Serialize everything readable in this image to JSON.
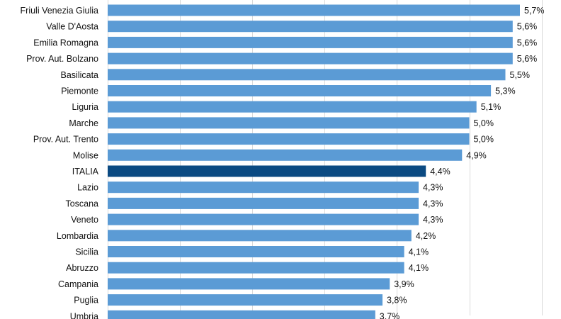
{
  "chart_data": {
    "type": "bar",
    "orientation": "horizontal",
    "title": "",
    "xlabel": "",
    "ylabel": "",
    "xlim": [
      0,
      6
    ],
    "grid": true,
    "legend": "none",
    "colors": {
      "default_bar": "#5B9BD5",
      "highlight_bar": "#0B4A82",
      "gridline": "#D9D9D9"
    },
    "highlight": "ITALIA",
    "categories": [
      "Friuli Venezia Giulia",
      "Valle D'Aosta",
      "Emilia Romagna",
      "Prov. Aut. Bolzano",
      "Basilicata",
      "Piemonte",
      "Liguria",
      "Marche",
      "Prov. Aut. Trento",
      "Molise",
      "ITALIA",
      "Lazio",
      "Toscana",
      "Veneto",
      "Lombardia",
      "Sicilia",
      "Abruzzo",
      "Campania",
      "Puglia",
      "Umbria"
    ],
    "values": [
      5.7,
      5.6,
      5.6,
      5.6,
      5.5,
      5.3,
      5.1,
      5.0,
      5.0,
      4.9,
      4.4,
      4.3,
      4.3,
      4.3,
      4.2,
      4.1,
      4.1,
      3.9,
      3.8,
      3.7
    ],
    "value_labels": [
      "5,7%",
      "5,6%",
      "5,6%",
      "5,6%",
      "5,5%",
      "5,3%",
      "5,1%",
      "5,0%",
      "5,0%",
      "4,9%",
      "4,4%",
      "4,3%",
      "4,3%",
      "4,3%",
      "4,2%",
      "4,1%",
      "4,1%",
      "3,9%",
      "3,8%",
      "3,7%"
    ]
  }
}
